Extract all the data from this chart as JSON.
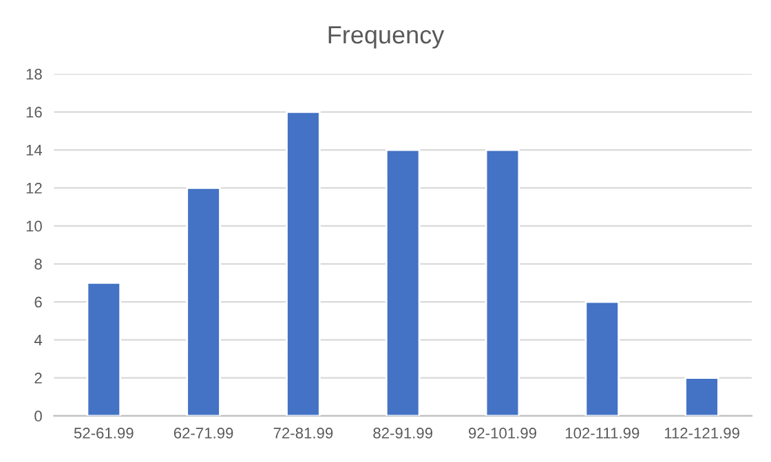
{
  "chart_data": {
    "type": "bar",
    "title": "Frequency",
    "categories": [
      "52-61.99",
      "62-71.99",
      "72-81.99",
      "82-91.99",
      "92-101.99",
      "102-111.99",
      "112-121.99"
    ],
    "values": [
      7,
      12,
      16,
      14,
      14,
      6,
      2
    ],
    "color": "#4472c4",
    "ylim": [
      0,
      18
    ],
    "yticks": [
      0,
      2,
      4,
      6,
      8,
      10,
      12,
      14,
      16,
      18
    ],
    "grid": "y"
  }
}
